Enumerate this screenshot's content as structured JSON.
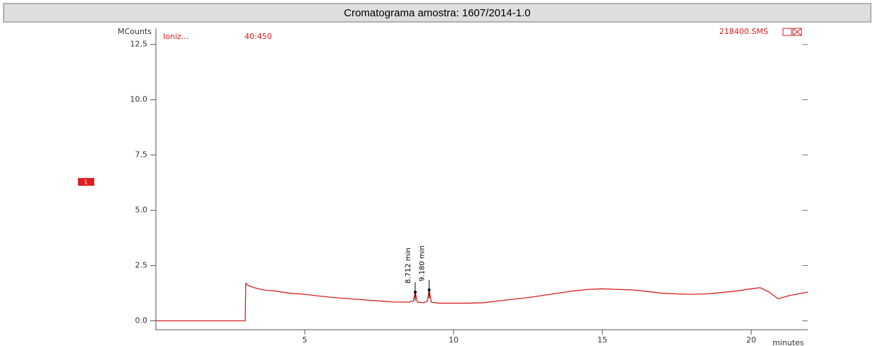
{
  "chart_data": {
    "type": "line",
    "title": "Cromatograma amostra: 1607/2014-1.0",
    "y_label": "MCounts",
    "x_label": "minutes",
    "header": {
      "ionization": "Ioniz...",
      "mass_range": "40:450",
      "file": "218400.SMS"
    },
    "trace_marker": "1",
    "x": [
      0,
      3.0,
      3.02,
      3.1,
      3.3,
      3.6,
      4,
      4.5,
      5,
      5.5,
      6,
      6.5,
      7,
      7.5,
      8,
      8.5,
      8.65,
      8.712,
      8.78,
      9.0,
      9.12,
      9.18,
      9.25,
      9.5,
      10,
      10.5,
      11,
      11.5,
      12,
      12.5,
      13,
      13.5,
      14,
      14.5,
      15,
      15.5,
      16,
      16.5,
      17,
      17.5,
      18,
      18.5,
      19,
      19.5,
      20,
      20.3,
      20.6,
      20.9,
      21.3,
      21.9
    ],
    "series": [
      {
        "color": "#d42020",
        "values": [
          0,
          0,
          1.7,
          1.6,
          1.5,
          1.4,
          1.35,
          1.25,
          1.2,
          1.12,
          1.05,
          1.0,
          0.95,
          0.9,
          0.85,
          0.85,
          0.9,
          1.3,
          0.85,
          0.82,
          0.9,
          1.4,
          0.85,
          0.8,
          0.8,
          0.8,
          0.82,
          0.9,
          0.98,
          1.05,
          1.15,
          1.25,
          1.35,
          1.42,
          1.45,
          1.42,
          1.4,
          1.33,
          1.25,
          1.22,
          1.2,
          1.22,
          1.28,
          1.35,
          1.45,
          1.5,
          1.3,
          1.0,
          1.15,
          1.3
        ]
      }
    ],
    "annotations": [
      {
        "x": 8.712,
        "y": 1.3,
        "label": "8.712 min"
      },
      {
        "x": 9.18,
        "y": 1.4,
        "label": "9.180 min"
      }
    ],
    "xlim": [
      0,
      21.9
    ],
    "ylim": [
      -0.4,
      13.1
    ],
    "xticks": [
      5,
      10,
      15,
      20
    ],
    "yticks": [
      {
        "value": 0,
        "label": "0.0"
      },
      2.5,
      {
        "value": 5,
        "label": "5.0"
      },
      7.5,
      {
        "value": 10,
        "label": "10.0"
      },
      12.5
    ]
  }
}
